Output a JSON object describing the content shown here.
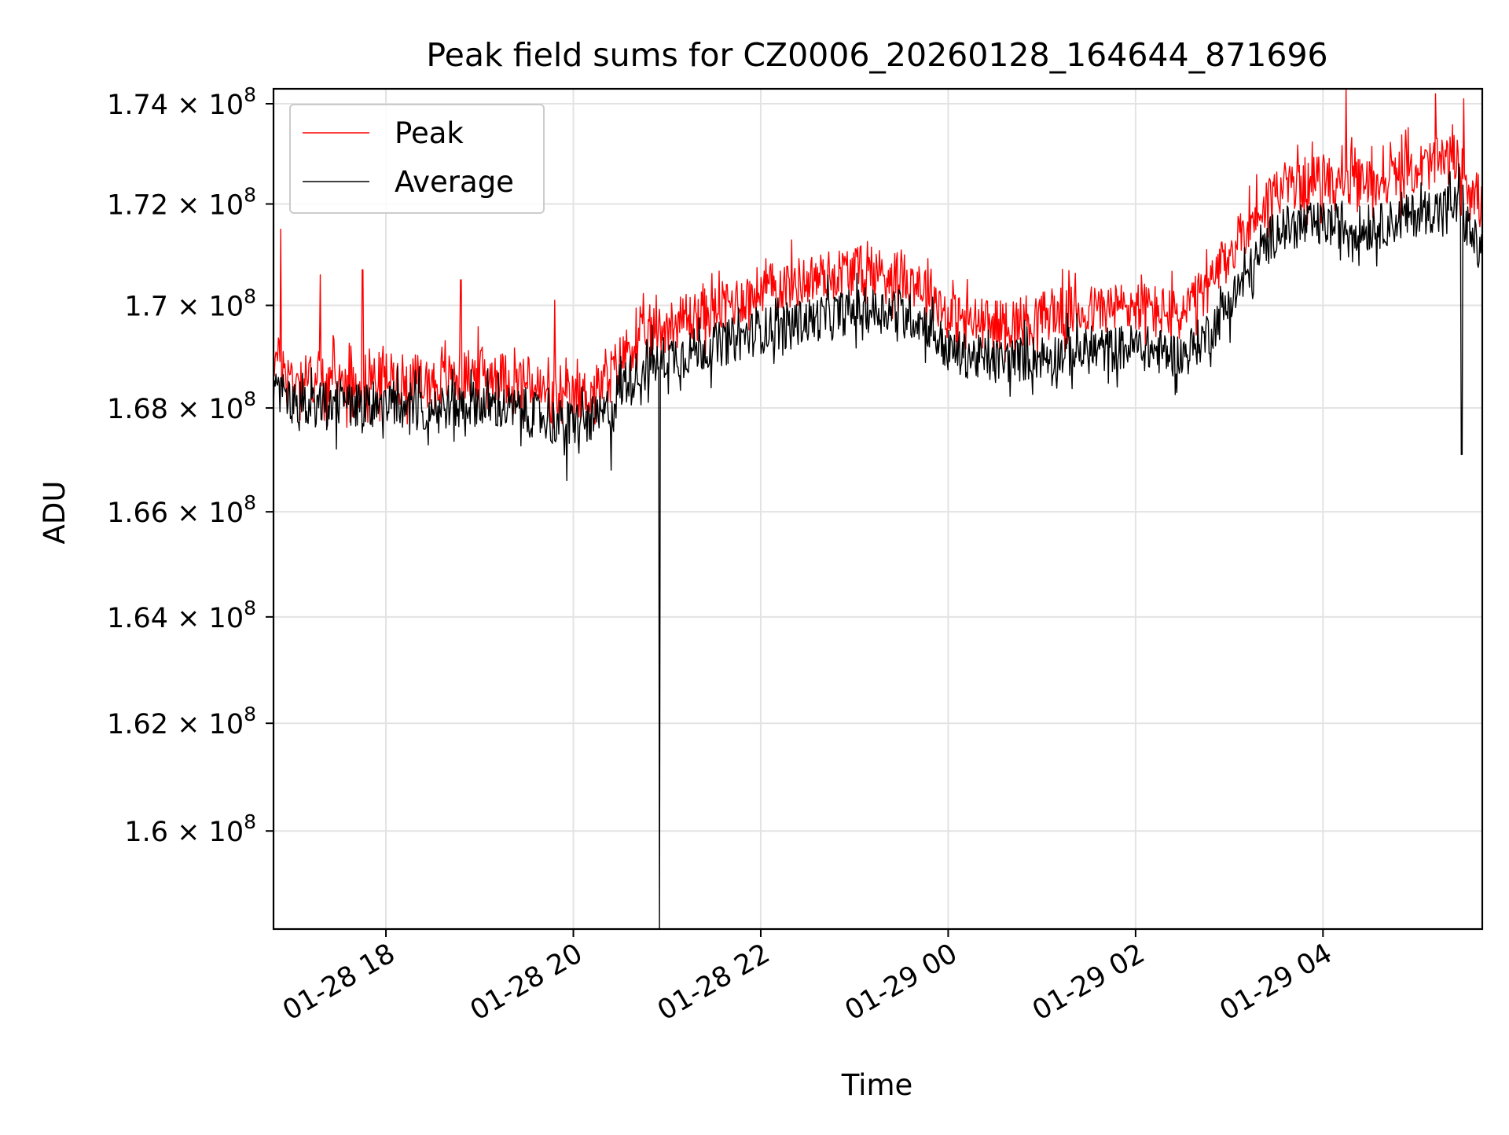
{
  "chart_data": {
    "type": "line",
    "title": "Peak field sums for CZ0006_20260128_164644_871696",
    "xlabel": "Time",
    "ylabel": "ADU",
    "y_scale": "log",
    "ylim": [
      158200000,
      174300000
    ],
    "xlim_hours": [
      16.8,
      29.7
    ],
    "x_ticks": [
      {
        "label": "01-28 18",
        "hours": 18
      },
      {
        "label": "01-28 20",
        "hours": 20
      },
      {
        "label": "01-28 22",
        "hours": 22
      },
      {
        "label": "01-29 00",
        "hours": 24
      },
      {
        "label": "01-29 02",
        "hours": 26
      },
      {
        "label": "01-29 04",
        "hours": 28
      }
    ],
    "y_ticks": [
      {
        "mantissa": "1.6",
        "value": 160000000
      },
      {
        "mantissa": "1.62",
        "value": 162000000
      },
      {
        "mantissa": "1.64",
        "value": 164000000
      },
      {
        "mantissa": "1.66",
        "value": 166000000
      },
      {
        "mantissa": "1.68",
        "value": 168000000
      },
      {
        "mantissa": "1.7",
        "value": 170000000
      },
      {
        "mantissa": "1.72",
        "value": 172000000
      },
      {
        "mantissa": "1.74",
        "value": 174000000
      }
    ],
    "y_tick_suffix": "× 10",
    "y_tick_exponent": "8",
    "grid": true,
    "legend_position": "top-left",
    "series": [
      {
        "name": "Peak",
        "color": "#ff0000",
        "trend": [
          [
            16.8,
            169000000
          ],
          [
            17.0,
            168600000
          ],
          [
            17.5,
            168500000
          ],
          [
            18.0,
            168600000
          ],
          [
            18.5,
            168500000
          ],
          [
            19.0,
            168700000
          ],
          [
            19.5,
            168500000
          ],
          [
            19.9,
            168100000
          ],
          [
            20.3,
            168400000
          ],
          [
            20.6,
            169200000
          ],
          [
            21.0,
            169600000
          ],
          [
            21.5,
            169900000
          ],
          [
            22.0,
            170300000
          ],
          [
            22.5,
            170500000
          ],
          [
            23.0,
            170700000
          ],
          [
            23.5,
            170600000
          ],
          [
            23.8,
            170300000
          ],
          [
            24.0,
            169800000
          ],
          [
            24.5,
            169600000
          ],
          [
            25.0,
            169800000
          ],
          [
            25.5,
            169900000
          ],
          [
            26.0,
            170000000
          ],
          [
            26.5,
            169800000
          ],
          [
            26.8,
            170400000
          ],
          [
            27.2,
            171600000
          ],
          [
            27.5,
            172300000
          ],
          [
            28.0,
            172500000
          ],
          [
            28.5,
            172400000
          ],
          [
            29.0,
            172700000
          ],
          [
            29.4,
            172900000
          ],
          [
            29.7,
            172000000
          ]
        ],
        "noise_amplitude": 500000,
        "spikes": [
          [
            16.88,
            171500000
          ],
          [
            17.3,
            170600000
          ],
          [
            17.75,
            170700000
          ],
          [
            18.8,
            170500000
          ],
          [
            19.8,
            170100000
          ],
          [
            28.25,
            174300000
          ],
          [
            29.2,
            174200000
          ],
          [
            29.5,
            174100000
          ]
        ],
        "dips": []
      },
      {
        "name": "Average",
        "color": "#000000",
        "trend": [
          [
            16.8,
            168300000
          ],
          [
            17.0,
            168100000
          ],
          [
            17.5,
            168000000
          ],
          [
            18.0,
            168100000
          ],
          [
            18.5,
            168000000
          ],
          [
            19.0,
            168100000
          ],
          [
            19.5,
            167900000
          ],
          [
            19.9,
            167700000
          ],
          [
            20.3,
            167800000
          ],
          [
            20.6,
            168600000
          ],
          [
            21.0,
            169000000
          ],
          [
            21.5,
            169200000
          ],
          [
            22.0,
            169500000
          ],
          [
            22.5,
            169700000
          ],
          [
            23.0,
            169900000
          ],
          [
            23.5,
            169900000
          ],
          [
            23.8,
            169600000
          ],
          [
            24.0,
            169100000
          ],
          [
            24.5,
            168900000
          ],
          [
            25.0,
            169000000
          ],
          [
            25.5,
            169100000
          ],
          [
            26.0,
            169200000
          ],
          [
            26.5,
            169000000
          ],
          [
            26.8,
            169500000
          ],
          [
            27.2,
            170600000
          ],
          [
            27.5,
            171500000
          ],
          [
            28.0,
            171600000
          ],
          [
            28.5,
            171500000
          ],
          [
            29.0,
            171800000
          ],
          [
            29.4,
            172000000
          ],
          [
            29.7,
            171000000
          ]
        ],
        "noise_amplitude": 450000,
        "spikes": [
          [
            29.45,
            172800000
          ]
        ],
        "dips": [
          [
            20.92,
            158200000
          ],
          [
            29.48,
            167100000
          ],
          [
            19.93,
            166600000
          ],
          [
            20.4,
            166800000
          ]
        ]
      }
    ]
  }
}
